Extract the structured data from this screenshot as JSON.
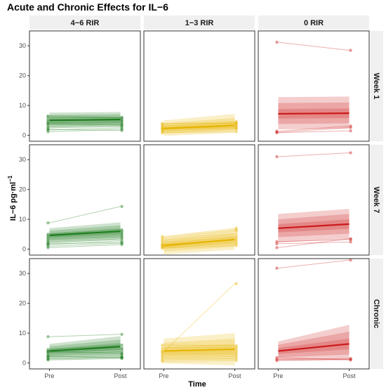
{
  "chart_data": {
    "type": "line",
    "title": "Acute and Chronic Effects for IL−6",
    "xlabel": "Time",
    "ylabel_main": "IL−6 pg·ml",
    "ylabel_sup": "−1",
    "x_categories": [
      "Pre",
      "Post"
    ],
    "ylim": [
      -2,
      35
    ],
    "y_ticks": [
      0,
      10,
      20,
      30
    ],
    "column_strips": [
      "4−6 RIR",
      "1−3 RIR",
      "0 RIR"
    ],
    "row_strips": [
      "Week 1",
      "Week 7",
      "Chronic"
    ],
    "colors": {
      "4−6 RIR": "#1e7d1e",
      "1−3 RIR": "#e6b400",
      "0 RIR": "#cc1a1a",
      "strip_bg": "#f0f0f0"
    },
    "panels": [
      {
        "row": "Week 1",
        "column": "4−6 RIR",
        "mean": [
          5.0,
          5.3
        ],
        "bands": [
          [
            4.0,
            6.0,
            4.2,
            6.2
          ],
          [
            3.3,
            6.8,
            3.5,
            7.1
          ],
          [
            2.6,
            7.6,
            2.9,
            7.8
          ]
        ],
        "individual": [
          [
            1.2,
            2.0
          ],
          [
            1.8,
            2.5
          ],
          [
            2.5,
            3.0
          ],
          [
            3.0,
            3.6
          ],
          [
            3.6,
            4.1
          ],
          [
            4.2,
            4.5
          ],
          [
            4.8,
            5.0
          ],
          [
            5.3,
            5.2
          ],
          [
            6.0,
            5.8
          ],
          [
            6.5,
            6.0
          ],
          [
            4.0,
            3.4
          ],
          [
            2.0,
            1.6
          ]
        ]
      },
      {
        "row": "Week 1",
        "column": "1−3 RIR",
        "mean": [
          2.3,
          3.3
        ],
        "bands": [
          [
            1.4,
            3.2,
            2.3,
            4.5
          ],
          [
            0.6,
            4.1,
            1.6,
            5.8
          ],
          [
            -0.2,
            5.0,
            0.8,
            7.2
          ]
        ],
        "individual": [
          [
            0.8,
            1.2
          ],
          [
            1.2,
            2.0
          ],
          [
            1.6,
            2.4
          ],
          [
            2.0,
            3.0
          ],
          [
            2.4,
            3.4
          ],
          [
            2.8,
            3.8
          ],
          [
            3.2,
            4.2
          ],
          [
            3.6,
            4.6
          ],
          [
            4.0,
            4.0
          ],
          [
            2.2,
            2.6
          ]
        ]
      },
      {
        "row": "Week 1",
        "column": "0 RIR",
        "mean": [
          7.2,
          7.4
        ],
        "bands": [
          [
            5.6,
            8.8,
            5.8,
            9.0
          ],
          [
            3.8,
            10.8,
            4.0,
            11.0
          ],
          [
            2.0,
            12.8,
            2.2,
            13.0
          ]
        ],
        "individual": [
          [
            31.2,
            28.5
          ],
          [
            1.0,
            2.6
          ],
          [
            1.4,
            3.1
          ],
          [
            0.9,
            1.5
          ]
        ]
      },
      {
        "row": "Week 7",
        "column": "4−6 RIR",
        "mean": [
          4.6,
          6.0
        ],
        "bands": [
          [
            3.8,
            5.4,
            5.0,
            7.0
          ],
          [
            3.0,
            6.2,
            4.0,
            8.0
          ],
          [
            2.2,
            7.0,
            3.0,
            9.0
          ]
        ],
        "individual": [
          [
            8.8,
            14.3
          ],
          [
            0.5,
            1.5
          ],
          [
            1.0,
            2.0
          ],
          [
            1.5,
            2.8
          ],
          [
            2.0,
            3.5
          ],
          [
            2.5,
            4.0
          ],
          [
            3.0,
            4.5
          ],
          [
            3.5,
            5.0
          ],
          [
            4.0,
            5.5
          ],
          [
            4.5,
            6.0
          ],
          [
            5.0,
            6.5
          ],
          [
            1.8,
            2.2
          ]
        ]
      },
      {
        "row": "Week 7",
        "column": "1−3 RIR",
        "mean": [
          1.2,
          3.2
        ],
        "bands": [
          [
            0.2,
            2.2,
            2.0,
            4.4
          ],
          [
            -0.8,
            3.2,
            0.8,
            5.6
          ],
          [
            -1.8,
            4.2,
            -0.2,
            6.8
          ]
        ],
        "individual": [
          [
            0.3,
            1.2
          ],
          [
            0.6,
            1.8
          ],
          [
            0.9,
            2.4
          ],
          [
            1.2,
            3.0
          ],
          [
            1.5,
            3.6
          ],
          [
            1.8,
            4.2
          ],
          [
            2.4,
            5.0
          ],
          [
            3.0,
            6.0
          ],
          [
            3.6,
            6.5
          ],
          [
            4.2,
            7.0
          ]
        ]
      },
      {
        "row": "Week 7",
        "column": "0 RIR",
        "mean": [
          7.0,
          8.4
        ],
        "bands": [
          [
            5.6,
            8.4,
            6.8,
            10.0
          ],
          [
            4.0,
            10.0,
            5.2,
            11.8
          ],
          [
            2.2,
            11.8,
            3.5,
            13.5
          ]
        ],
        "individual": [
          [
            31.0,
            32.3
          ],
          [
            0.5,
            3.5
          ],
          [
            1.8,
            2.4
          ],
          [
            2.5,
            3.2
          ]
        ]
      },
      {
        "row": "Chronic",
        "column": "4−6 RIR",
        "mean": [
          4.0,
          5.5
        ],
        "bands": [
          [
            3.2,
            4.8,
            4.3,
            6.7
          ],
          [
            2.4,
            5.6,
            3.2,
            7.8
          ],
          [
            1.6,
            6.4,
            2.1,
            9.0
          ]
        ],
        "individual": [
          [
            8.8,
            9.6
          ],
          [
            1.0,
            1.5
          ],
          [
            1.5,
            2.0
          ],
          [
            2.0,
            2.5
          ],
          [
            2.5,
            3.0
          ],
          [
            3.0,
            3.8
          ],
          [
            3.5,
            4.5
          ],
          [
            4.0,
            5.0
          ],
          [
            4.5,
            6.0
          ],
          [
            1.3,
            1.8
          ],
          [
            2.2,
            1.8
          ],
          [
            3.8,
            3.2
          ]
        ]
      },
      {
        "row": "Chronic",
        "column": "1−3 RIR",
        "mean": [
          4.0,
          4.6
        ],
        "bands": [
          [
            2.6,
            5.4,
            2.8,
            6.4
          ],
          [
            1.2,
            6.8,
            1.0,
            8.2
          ],
          [
            -0.2,
            8.2,
            -0.8,
            10.0
          ]
        ],
        "individual": [
          [
            3.8,
            26.6
          ],
          [
            0.5,
            0.8
          ],
          [
            1.0,
            1.5
          ],
          [
            1.6,
            2.2
          ],
          [
            2.2,
            2.8
          ],
          [
            2.8,
            3.4
          ],
          [
            3.4,
            4.0
          ],
          [
            4.2,
            4.6
          ],
          [
            5.0,
            5.2
          ],
          [
            6.0,
            5.8
          ]
        ]
      },
      {
        "row": "Chronic",
        "column": "0 RIR",
        "mean": [
          4.0,
          6.4
        ],
        "bands": [
          [
            3.0,
            5.0,
            4.6,
            8.2
          ],
          [
            1.9,
            6.1,
            2.8,
            10.5
          ],
          [
            0.8,
            7.2,
            1.0,
            12.8
          ]
        ],
        "individual": [
          [
            31.8,
            34.5
          ],
          [
            1.2,
            1.5
          ],
          [
            1.8,
            1.0
          ],
          [
            0.8,
            1.2
          ]
        ]
      }
    ]
  }
}
